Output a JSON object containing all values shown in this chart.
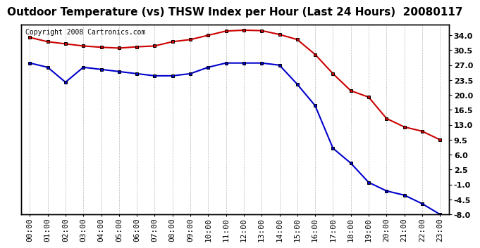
{
  "title": "Outdoor Temperature (vs) THSW Index per Hour (Last 24 Hours)  20080117",
  "copyright": "Copyright 2008 Cartronics.com",
  "hours": [
    "00:00",
    "01:00",
    "02:00",
    "03:00",
    "04:00",
    "05:00",
    "06:00",
    "07:00",
    "08:00",
    "09:00",
    "10:00",
    "11:00",
    "12:00",
    "13:00",
    "14:00",
    "15:00",
    "16:00",
    "17:00",
    "18:00",
    "19:00",
    "20:00",
    "21:00",
    "22:00",
    "23:00"
  ],
  "red_data": [
    33.5,
    32.5,
    32.0,
    31.5,
    31.2,
    31.0,
    31.3,
    31.5,
    32.5,
    33.0,
    34.0,
    35.0,
    35.2,
    35.1,
    34.2,
    33.0,
    29.5,
    25.0,
    21.0,
    19.5,
    14.5,
    12.5,
    11.5,
    9.5
  ],
  "blue_data": [
    27.5,
    26.5,
    23.0,
    26.5,
    26.0,
    25.5,
    25.0,
    24.5,
    24.5,
    25.0,
    26.5,
    27.5,
    27.5,
    27.5,
    27.0,
    22.5,
    17.5,
    7.5,
    4.0,
    -0.5,
    -2.5,
    -3.5,
    -5.5,
    -8.0
  ],
  "red_color": "#cc0000",
  "blue_color": "#0000cc",
  "marker_color": "#000000",
  "bg_color": "#ffffff",
  "grid_color": "#bbbbbb",
  "yticks_right": [
    34.0,
    30.5,
    27.0,
    23.5,
    20.0,
    16.5,
    13.0,
    9.5,
    6.0,
    2.5,
    -1.0,
    -4.5,
    -8.0
  ],
  "ymin": -8.0,
  "ymax": 36.5,
  "title_fontsize": 11,
  "axis_fontsize": 8,
  "copyright_fontsize": 7
}
